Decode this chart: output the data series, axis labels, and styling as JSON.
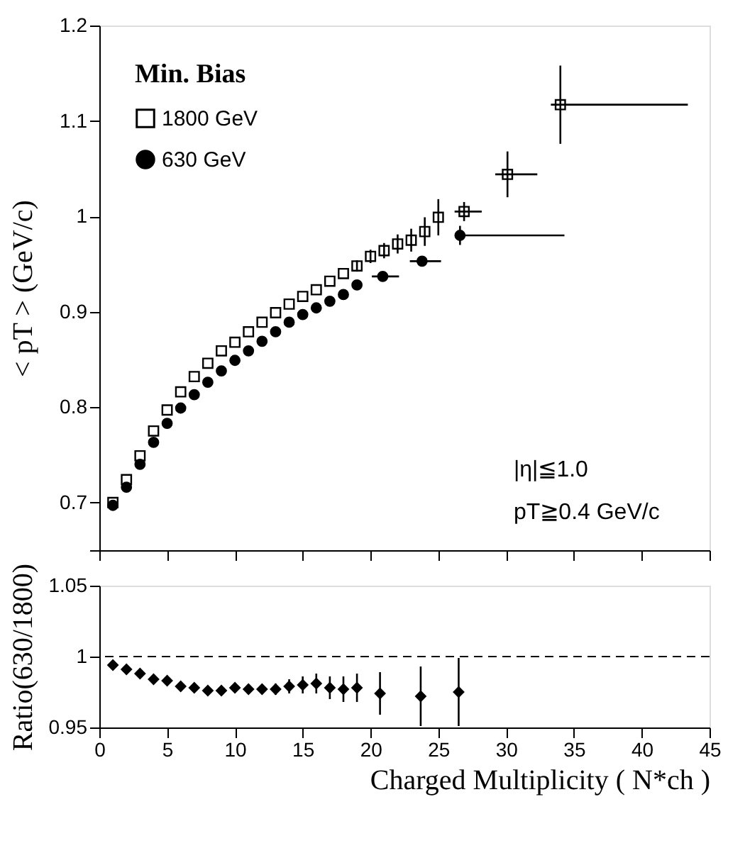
{
  "chart_data": [
    {
      "type": "scatter",
      "ylabel": "< pT > (GeV/c)",
      "legend_title": "Min. Bias",
      "legend": "top left",
      "grid": false,
      "tick_labels": "y",
      "xlim": [
        0,
        45
      ],
      "xticks": [
        0,
        5,
        10,
        15,
        20,
        25,
        30,
        35,
        40,
        45
      ],
      "ylim": [
        0.65,
        1.2
      ],
      "yticks": [
        {
          "value": 0.65,
          "label": null
        },
        0.7,
        0.8,
        0.9,
        1,
        1.1,
        1.2
      ],
      "annotations": [
        "|η|≦1.0",
        "pT≧0.4 GeV/c"
      ],
      "series": [
        {
          "name": "1800 GeV",
          "color": "#000000",
          "marker": "square",
          "x": [
            1,
            2,
            3,
            4,
            5,
            6,
            7,
            8,
            9,
            10,
            11,
            12,
            13,
            14,
            15,
            16,
            17,
            18,
            19,
            20,
            21,
            22,
            23,
            24,
            25,
            26.9,
            30.1,
            34.0
          ],
          "values": [
            0.7,
            0.724,
            0.749,
            0.775,
            0.797,
            0.816,
            0.832,
            0.846,
            0.859,
            0.868,
            0.879,
            0.889,
            0.899,
            0.908,
            0.916,
            0.923,
            0.932,
            0.94,
            0.948,
            0.958,
            0.964,
            0.971,
            0.975,
            0.984,
            0.999,
            1.005,
            1.044,
            1.117
          ],
          "errors": [
            null,
            null,
            null,
            null,
            null,
            null,
            null,
            null,
            null,
            null,
            null,
            null,
            null,
            null,
            null,
            null,
            null,
            null,
            0.006,
            0.007,
            0.008,
            0.01,
            0.012,
            0.015,
            0.019,
            0.01,
            0.024,
            0.041
          ],
          "xerrors": [
            null,
            null,
            null,
            null,
            null,
            null,
            null,
            null,
            null,
            null,
            null,
            null,
            null,
            null,
            null,
            null,
            null,
            null,
            null,
            null,
            null,
            null,
            null,
            null,
            null,
            [
              26.2,
              28.2
            ],
            [
              29.2,
              32.3
            ],
            [
              33.3,
              43.4
            ]
          ]
        },
        {
          "name": "630 GeV",
          "color": "#000000",
          "marker": "circle",
          "x": [
            1,
            2,
            3,
            4,
            5,
            6,
            7,
            8,
            9,
            10,
            11,
            12,
            13,
            14,
            15,
            16,
            17,
            18,
            19,
            20.9,
            23.8,
            26.6
          ],
          "values": [
            0.697,
            0.716,
            0.74,
            0.763,
            0.783,
            0.799,
            0.813,
            0.826,
            0.838,
            0.849,
            0.859,
            0.869,
            0.879,
            0.889,
            0.897,
            0.904,
            0.911,
            0.918,
            0.928,
            0.937,
            0.953,
            0.98
          ],
          "errors": [
            null,
            null,
            null,
            null,
            null,
            null,
            null,
            null,
            null,
            null,
            null,
            null,
            null,
            null,
            null,
            null,
            null,
            null,
            0.005,
            0.004,
            0.005,
            0.01
          ],
          "xerrors": [
            null,
            null,
            null,
            null,
            null,
            null,
            null,
            null,
            null,
            null,
            null,
            null,
            null,
            null,
            null,
            null,
            null,
            null,
            null,
            [
              20.1,
              22.1
            ],
            [
              22.9,
              25.2
            ],
            [
              26.3,
              34.3
            ]
          ]
        }
      ]
    },
    {
      "type": "scatter",
      "xlabel": "Charged Multiplicity ( N*ch )",
      "ylabel": "Ratio(630/1800)",
      "grid": false,
      "xlim": [
        0,
        45
      ],
      "xticks": [
        0,
        5,
        10,
        15,
        20,
        25,
        30,
        35,
        40,
        45
      ],
      "ylim": [
        0.95,
        1.05
      ],
      "yticks": [
        0.95,
        1,
        1.05
      ],
      "ref_lines": [
        {
          "axis": "y",
          "value": 1,
          "line_style": "dashed",
          "color": "#000000"
        }
      ],
      "series": [
        {
          "color": "#000000",
          "marker": "diamond",
          "x": [
            1,
            2,
            3,
            4,
            5,
            6,
            7,
            8,
            9,
            10,
            11,
            12,
            13,
            14,
            15,
            16,
            17,
            18,
            19,
            20.7,
            23.7,
            26.5
          ],
          "values": [
            0.994,
            0.991,
            0.988,
            0.984,
            0.983,
            0.979,
            0.978,
            0.976,
            0.976,
            0.978,
            0.977,
            0.977,
            0.977,
            0.979,
            0.98,
            0.981,
            0.978,
            0.977,
            0.978,
            0.974,
            0.972,
            0.975
          ],
          "errors": [
            null,
            null,
            null,
            null,
            null,
            0.002,
            0.002,
            0.002,
            0.002,
            0.003,
            0.003,
            0.003,
            0.004,
            0.005,
            0.006,
            0.007,
            0.008,
            0.009,
            0.01,
            0.015,
            0.021,
            0.024
          ]
        }
      ]
    }
  ]
}
